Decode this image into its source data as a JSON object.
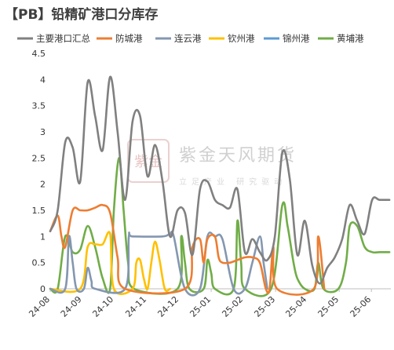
{
  "page": {
    "title": "【PB】铅精矿港口分库存",
    "watermark_main": "紫金天风期货",
    "watermark_sub": "立足产业  研究驱动",
    "watermark_logo": "紫金"
  },
  "chart_data": {
    "type": "line",
    "title": "【PB】铅精矿港口分库存",
    "xlabel": "",
    "ylabel": "",
    "ylim": [
      0,
      4.5
    ],
    "yticks": [
      0,
      0.5,
      1,
      1.5,
      2,
      2.5,
      3,
      3.5,
      4,
      4.5
    ],
    "ytick_labels": [
      "0",
      "0.5",
      "1",
      "1.5",
      "2",
      "2.5",
      "3",
      "3.5",
      "4",
      "4.5"
    ],
    "xlim": [
      0,
      45.5
    ],
    "x_unit": "weeks from 2024-08",
    "categories": [
      "24-08",
      "24-09",
      "24-10",
      "24-11",
      "24-12",
      "25-01",
      "25-02",
      "25-03",
      "25-04",
      "25-05",
      "25-06"
    ],
    "category_x": [
      0,
      4.25,
      8.5,
      12.9,
      17.2,
      21.5,
      25.8,
      30.1,
      34.3,
      38.6,
      42.9
    ],
    "grid": false,
    "legend_position": "top",
    "series": [
      {
        "name": "主要港口汇总",
        "color": "#808080",
        "points": [
          [
            0,
            1.1
          ],
          [
            1,
            1.5
          ],
          [
            2,
            2.8
          ],
          [
            3,
            2.7
          ],
          [
            4,
            2.05
          ],
          [
            5,
            3.95
          ],
          [
            6,
            3.3
          ],
          [
            7,
            2.65
          ],
          [
            8,
            4.05
          ],
          [
            9,
            3.0
          ],
          [
            10,
            1.7
          ],
          [
            11,
            3.2
          ],
          [
            12,
            3.3
          ],
          [
            13,
            2.15
          ],
          [
            14,
            2.75
          ],
          [
            15,
            2.05
          ],
          [
            16,
            1.0
          ],
          [
            17,
            1.5
          ],
          [
            18,
            1.45
          ],
          [
            19,
            0.65
          ],
          [
            20,
            1.9
          ],
          [
            21,
            2.05
          ],
          [
            22,
            1.7
          ],
          [
            23,
            1.6
          ],
          [
            24,
            1.55
          ],
          [
            25,
            1.9
          ],
          [
            26,
            0.7
          ],
          [
            27,
            0.95
          ],
          [
            28,
            0.7
          ],
          [
            29,
            0.55
          ],
          [
            30,
            1.0
          ],
          [
            31,
            2.6
          ],
          [
            32,
            2.1
          ],
          [
            33,
            0.65
          ],
          [
            34,
            1.3
          ],
          [
            35,
            0.45
          ],
          [
            36,
            0.1
          ],
          [
            37,
            0.4
          ],
          [
            38,
            0.6
          ],
          [
            39,
            0.95
          ],
          [
            40,
            1.6
          ],
          [
            41,
            1.3
          ],
          [
            42,
            1.05
          ],
          [
            43,
            1.7
          ],
          [
            44,
            1.7
          ],
          [
            45.3,
            1.7
          ]
        ]
      },
      {
        "name": "防城港",
        "color": "#ed7d31",
        "points": [
          [
            0,
            1.1
          ],
          [
            1,
            1.4
          ],
          [
            1.5,
            1.0
          ],
          [
            2,
            0.8
          ],
          [
            3,
            1.5
          ],
          [
            4,
            1.5
          ],
          [
            5,
            1.5
          ],
          [
            6,
            1.55
          ],
          [
            7,
            1.6
          ],
          [
            8,
            1.45
          ],
          [
            9,
            0.6
          ],
          [
            10,
            0.0
          ],
          [
            18,
            0.0
          ],
          [
            19,
            0.8
          ],
          [
            20,
            0.95
          ],
          [
            20.5,
            0.5
          ],
          [
            21,
            0.95
          ],
          [
            22,
            1.0
          ],
          [
            22.5,
            0.6
          ],
          [
            23,
            0.5
          ],
          [
            24,
            0.5
          ],
          [
            25,
            0.55
          ],
          [
            26,
            0.6
          ],
          [
            27,
            0.6
          ],
          [
            28,
            0.5
          ],
          [
            28.8,
            0.0
          ],
          [
            29.3,
            0.0
          ],
          [
            29.8,
            0.8
          ],
          [
            30.3,
            0.0
          ],
          [
            35.2,
            0.0
          ],
          [
            35.8,
            1.0
          ],
          [
            36.6,
            0.0
          ]
        ]
      },
      {
        "name": "连云港",
        "color": "#8497b0",
        "points": [
          [
            0,
            0.0
          ],
          [
            2,
            0.0
          ],
          [
            2.5,
            1.0
          ],
          [
            3,
            0.5
          ],
          [
            3.5,
            0.0
          ],
          [
            4.5,
            0.0
          ],
          [
            5,
            0.4
          ],
          [
            5.5,
            0.15
          ],
          [
            6,
            0.0
          ],
          [
            10,
            0.0
          ],
          [
            10.5,
            1.0
          ],
          [
            11,
            1.0
          ],
          [
            15,
            1.0
          ],
          [
            16,
            1.05
          ],
          [
            16.5,
            1.0
          ],
          [
            18,
            0.0
          ],
          [
            20,
            0.0
          ],
          [
            21,
            1.0
          ],
          [
            22,
            1.0
          ],
          [
            23,
            0.95
          ],
          [
            24.5,
            0.0
          ],
          [
            26,
            0.0
          ],
          [
            27,
            0.5
          ],
          [
            28,
            1.0
          ],
          [
            28.5,
            0.5
          ],
          [
            29,
            0.0
          ]
        ]
      },
      {
        "name": "钦州港",
        "color": "#ffc000",
        "points": [
          [
            0,
            0.0
          ],
          [
            4,
            0.0
          ],
          [
            5,
            0.8
          ],
          [
            6,
            0.85
          ],
          [
            7,
            0.85
          ],
          [
            8,
            1.05
          ],
          [
            8.5,
            0.0
          ],
          [
            11,
            0.0
          ],
          [
            11.5,
            0.5
          ],
          [
            12,
            0.55
          ],
          [
            12.5,
            0.2
          ],
          [
            13,
            0.0
          ],
          [
            13.5,
            0.5
          ],
          [
            14,
            0.9
          ],
          [
            14.6,
            0.55
          ],
          [
            15.3,
            0.0
          ],
          [
            16,
            0.0
          ]
        ]
      },
      {
        "name": "锦州港",
        "color": "#5b9bd5",
        "points": []
      },
      {
        "name": "黄埔港",
        "color": "#70ad47",
        "points": [
          [
            0,
            0.0
          ],
          [
            1,
            0.0
          ],
          [
            2,
            1.0
          ],
          [
            3,
            0.7
          ],
          [
            4,
            0.75
          ],
          [
            5,
            1.2
          ],
          [
            6,
            0.8
          ],
          [
            7,
            0.2
          ],
          [
            8,
            0.0
          ],
          [
            8.5,
            1.5
          ],
          [
            9.2,
            2.5
          ],
          [
            9.8,
            1.5
          ],
          [
            10.4,
            0.5
          ],
          [
            11.2,
            0.0
          ],
          [
            17,
            0.0
          ],
          [
            17.5,
            1.0
          ],
          [
            18,
            0.5
          ],
          [
            18.6,
            0.0
          ],
          [
            20.5,
            0.0
          ],
          [
            21,
            0.55
          ],
          [
            21.5,
            0.3
          ],
          [
            22,
            0.0
          ],
          [
            24.5,
            0.0
          ],
          [
            25,
            1.3
          ],
          [
            25.5,
            0.5
          ],
          [
            26,
            0.0
          ],
          [
            29.5,
            0.0
          ],
          [
            31,
            1.6
          ],
          [
            31.7,
            1.2
          ],
          [
            32.5,
            0.5
          ],
          [
            33,
            0.2
          ],
          [
            34,
            0.0
          ],
          [
            35.3,
            0.0
          ],
          [
            35.8,
            0.5
          ],
          [
            36.5,
            0.0
          ],
          [
            38.5,
            0.0
          ],
          [
            39.5,
            0.5
          ],
          [
            40,
            1.2
          ],
          [
            41,
            1.2
          ],
          [
            42,
            0.8
          ],
          [
            43,
            0.7
          ],
          [
            44,
            0.7
          ],
          [
            45.3,
            0.7
          ]
        ]
      }
    ]
  }
}
